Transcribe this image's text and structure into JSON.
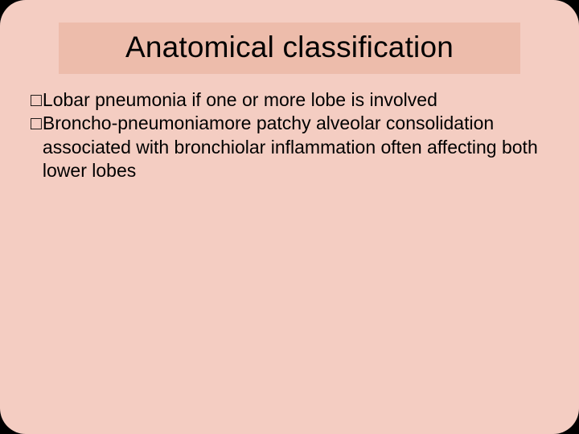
{
  "slide": {
    "title": "Anatomical classification",
    "bullets": [
      {
        "glyph": "□",
        "text": "Lobar pneumonia if one or more lobe is involved"
      },
      {
        "glyph": "□",
        "text": "Broncho-pneumoniamore patchy alveolar consolidation associated with  bronchiolar inflammation often affecting both lower lobes"
      }
    ]
  },
  "style": {
    "background_outer": "#000000",
    "background_slide": "#f4cdc2",
    "title_box_bg": "#edbcab",
    "title_color": "#000000",
    "text_color": "#000000",
    "title_fontsize": 37,
    "text_fontsize": 23,
    "border_radius": 32,
    "slide_width": 720,
    "slide_height": 540,
    "font_family": "Arial"
  }
}
